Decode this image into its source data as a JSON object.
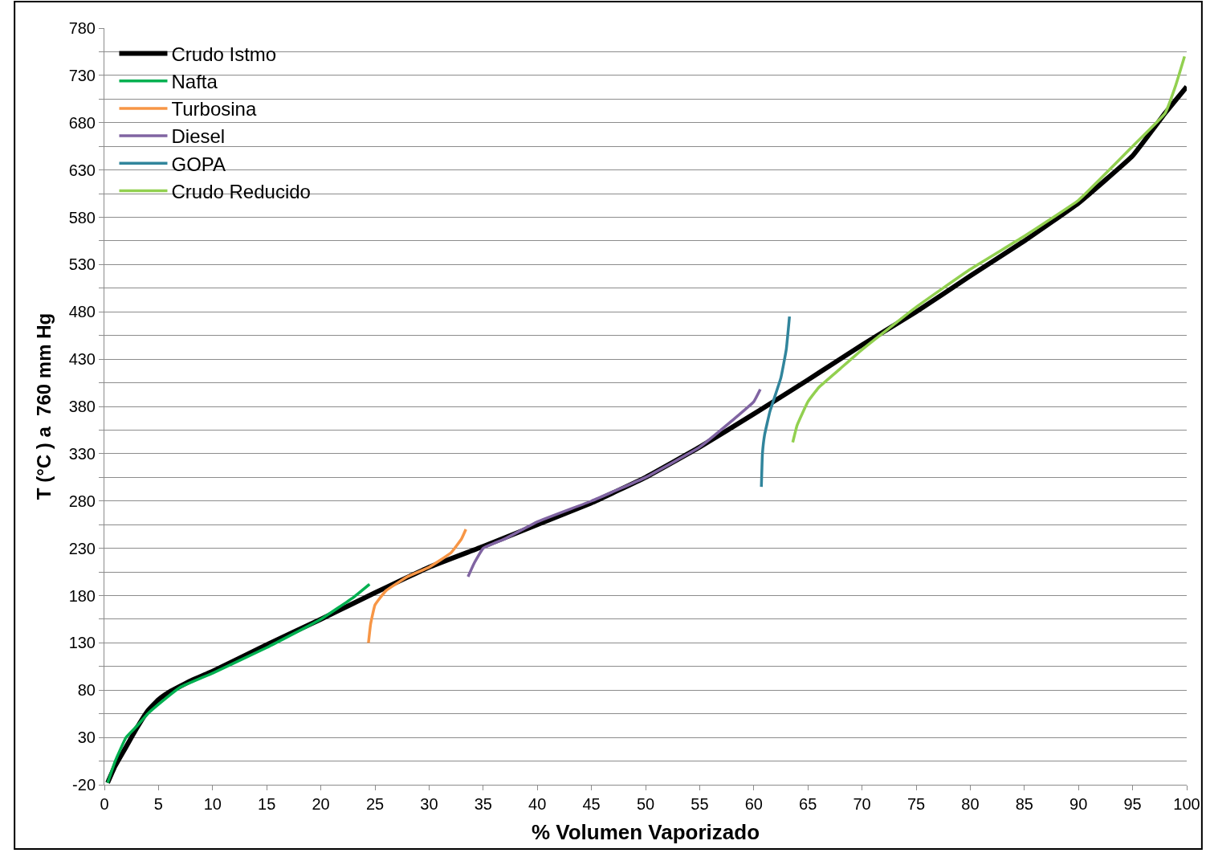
{
  "chart_data": {
    "type": "line",
    "xlabel": "% Volumen Vaporizado",
    "ylabel": "T (°C ) a  760 mm Hg",
    "xlim": [
      0,
      100
    ],
    "xticks": [
      0,
      5,
      10,
      15,
      20,
      25,
      30,
      35,
      40,
      45,
      50,
      55,
      60,
      65,
      70,
      75,
      80,
      85,
      90,
      95,
      100
    ],
    "ylim": [
      -20,
      780
    ],
    "yticks": [
      -20,
      {
        "value": 5,
        "label": null
      },
      30,
      {
        "value": 55,
        "label": null
      },
      80,
      {
        "value": 105,
        "label": null
      },
      130,
      {
        "value": 155,
        "label": null
      },
      180,
      {
        "value": 205,
        "label": null
      },
      230,
      {
        "value": 255,
        "label": null
      },
      280,
      {
        "value": 305,
        "label": null
      },
      330,
      {
        "value": 355,
        "label": null
      },
      380,
      {
        "value": 405,
        "label": null
      },
      430,
      {
        "value": 455,
        "label": null
      },
      480,
      {
        "value": 505,
        "label": null
      },
      530,
      {
        "value": 555,
        "label": null
      },
      580,
      {
        "value": 605,
        "label": null
      },
      630,
      {
        "value": 655,
        "label": null
      },
      680,
      {
        "value": 705,
        "label": null
      },
      730,
      {
        "value": 755,
        "label": null
      },
      780
    ],
    "grid": "y",
    "legend": "top left",
    "marker": "none",
    "line_style": "solid",
    "series": [
      {
        "name": "Crudo Istmo",
        "color": "#000000",
        "x": [
          0.3,
          1,
          2,
          3,
          4,
          5,
          6,
          8,
          10,
          15,
          20,
          25,
          30,
          35,
          40,
          45,
          50,
          55,
          60,
          65,
          70,
          75,
          80,
          85,
          90,
          95,
          98,
          100
        ],
        "values": [
          -18,
          0,
          20,
          40,
          58,
          70,
          78,
          90,
          100,
          128,
          155,
          183,
          210,
          232,
          255,
          278,
          305,
          337,
          372,
          408,
          445,
          480,
          518,
          555,
          595,
          645,
          690,
          718
        ]
      },
      {
        "name": "Nafta",
        "color": "#00b050",
        "x": [
          0.3,
          1,
          2,
          3,
          4,
          5,
          7,
          10,
          15,
          20,
          23,
          24.5
        ],
        "values": [
          -18,
          5,
          30,
          42,
          55,
          65,
          83,
          98,
          125,
          155,
          178,
          192
        ]
      },
      {
        "name": "Turbosina",
        "color": "#f79646",
        "x": [
          24.4,
          24.6,
          25,
          26,
          28,
          30,
          32,
          33,
          33.4
        ],
        "values": [
          130,
          150,
          170,
          185,
          200,
          210,
          225,
          240,
          250
        ]
      },
      {
        "name": "Diesel",
        "color": "#8064a2",
        "x": [
          33.6,
          34.2,
          35,
          37,
          40,
          45,
          50,
          55,
          58,
          60,
          60.6
        ],
        "values": [
          200,
          215,
          230,
          240,
          258,
          280,
          305,
          337,
          365,
          385,
          398
        ]
      },
      {
        "name": "GOPA",
        "color": "#31859c",
        "x": [
          60.7,
          60.8,
          61,
          61.5,
          62.5,
          63,
          63.3
        ],
        "values": [
          295,
          330,
          350,
          375,
          410,
          440,
          475
        ]
      },
      {
        "name": "Crudo Reducido",
        "color": "#92d050",
        "x": [
          63.6,
          64,
          65,
          66,
          68,
          70,
          75,
          80,
          85,
          90,
          95,
          98,
          99,
          99.8
        ],
        "values": [
          342,
          360,
          385,
          400,
          420,
          440,
          485,
          525,
          560,
          598,
          655,
          690,
          720,
          750
        ]
      }
    ]
  }
}
